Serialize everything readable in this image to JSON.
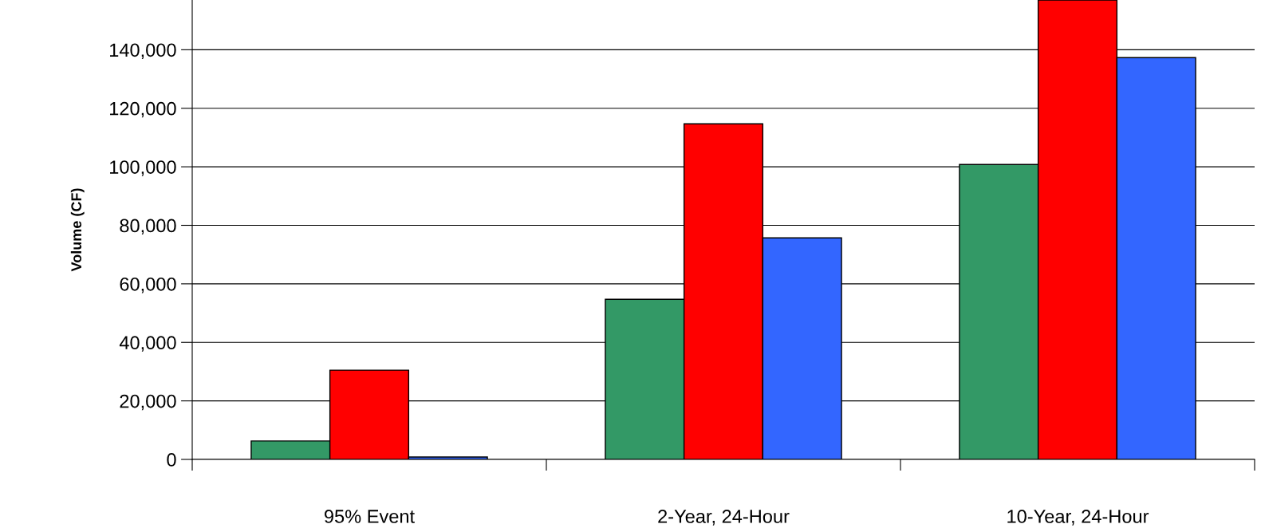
{
  "chart_data": {
    "type": "bar",
    "ylabel": "Volume (CF)",
    "categories": [
      "95% Event",
      "2-Year, 24-Hour",
      "10-Year, 24-Hour"
    ],
    "series": [
      {
        "color": "#339966",
        "values": [
          6300,
          54700,
          100800
        ]
      },
      {
        "color": "#ff0000",
        "values": [
          30500,
          114700,
          157000
        ]
      },
      {
        "color": "#3366ff",
        "values": [
          800,
          75700,
          137300
        ]
      }
    ],
    "ylim": [
      0,
      157000
    ],
    "yticks": [
      {
        "value": 0,
        "label": "0"
      },
      {
        "value": 20000,
        "label": "20,000"
      },
      {
        "value": 40000,
        "label": "40,000"
      },
      {
        "value": 60000,
        "label": "60,000"
      },
      {
        "value": 80000,
        "label": "80,000"
      },
      {
        "value": 100000,
        "label": "100,000"
      },
      {
        "value": 120000,
        "label": "120,000"
      },
      {
        "value": 140000,
        "label": "140,000"
      }
    ],
    "grid": "y"
  }
}
